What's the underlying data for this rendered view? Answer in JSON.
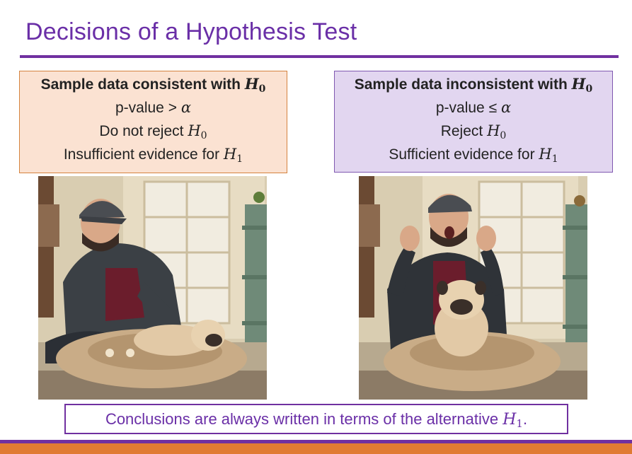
{
  "slide": {
    "title": "Decisions of a Hypothesis Test"
  },
  "left_box": {
    "heading": "Sample data consistent with",
    "heading_symbol": "H",
    "heading_sub": "0",
    "line1_text": "p-value >",
    "line1_symbol": "α",
    "line2_text": "Do not reject",
    "line2_symbol": "H",
    "line2_sub": "0",
    "line3_text": "Insufficient evidence for",
    "line3_symbol": "H",
    "line3_sub": "1",
    "background_color": "#fbe2d2",
    "border_color": "#d5833f"
  },
  "right_box": {
    "heading": "Sample data inconsistent with",
    "heading_symbol": "H",
    "heading_sub": "0",
    "line1_text": "p-value ≤",
    "line1_symbol": "α",
    "line2_text": "Reject",
    "line2_symbol": "H",
    "line2_sub": "0",
    "line3_text": "Sufficient evidence for",
    "line3_symbol": "H",
    "line3_sub": "1",
    "background_color": "#e2d6f0",
    "border_color": "#7f58b0"
  },
  "photos": {
    "left": "man calmly petting a pug lying in a fluffy dog bed",
    "right": "surprised man with raised hands behind a pug sitting up in a dog bed"
  },
  "conclusion": {
    "text": "Conclusions are always written in terms of the alternative",
    "symbol": "H",
    "sub": "1",
    "suffix": "."
  },
  "colors": {
    "accent": "#7030a0",
    "title": "#6a2fa7",
    "footer": "#e07b33"
  }
}
